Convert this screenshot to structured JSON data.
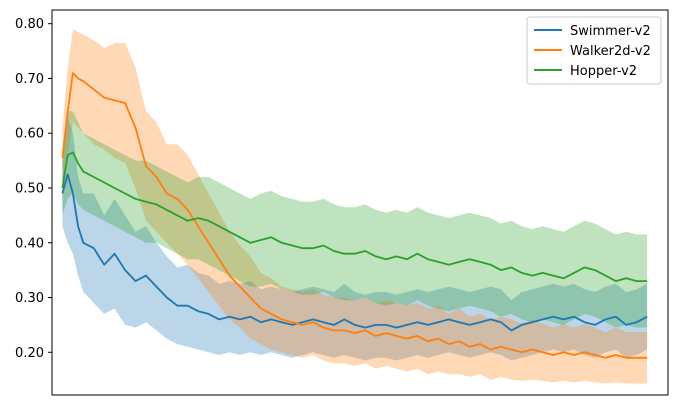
{
  "chart_data": {
    "type": "line",
    "title": "",
    "xlabel": "",
    "ylabel": "",
    "x_ticks_visible": false,
    "ylim": [
      0.122,
      0.825
    ],
    "xlim": [
      -10,
      580
    ],
    "yticks": [
      0.2,
      0.3,
      0.4,
      0.5,
      0.6,
      0.7,
      0.8
    ],
    "ytick_labels": [
      "0.20",
      "0.30",
      "0.40",
      "0.50",
      "0.60",
      "0.70",
      "0.80"
    ],
    "grid": false,
    "legend_position": "top-right",
    "x": [
      0,
      5,
      10,
      15,
      20,
      30,
      40,
      50,
      60,
      70,
      80,
      90,
      100,
      110,
      120,
      130,
      140,
      150,
      160,
      170,
      180,
      190,
      200,
      210,
      220,
      230,
      240,
      250,
      260,
      270,
      280,
      290,
      300,
      310,
      320,
      330,
      340,
      350,
      360,
      370,
      380,
      390,
      400,
      410,
      420,
      430,
      440,
      450,
      460,
      470,
      480,
      490,
      500,
      510,
      520,
      530,
      540,
      550,
      560
    ],
    "series": [
      {
        "name": "Swimmer-v2",
        "color": "#1f77b4",
        "values": [
          0.49,
          0.525,
          0.49,
          0.43,
          0.4,
          0.39,
          0.36,
          0.38,
          0.35,
          0.33,
          0.34,
          0.32,
          0.3,
          0.285,
          0.285,
          0.275,
          0.27,
          0.26,
          0.265,
          0.26,
          0.265,
          0.255,
          0.26,
          0.255,
          0.25,
          0.255,
          0.26,
          0.255,
          0.25,
          0.26,
          0.25,
          0.245,
          0.25,
          0.25,
          0.245,
          0.25,
          0.255,
          0.25,
          0.255,
          0.26,
          0.255,
          0.25,
          0.255,
          0.26,
          0.255,
          0.24,
          0.25,
          0.255,
          0.26,
          0.265,
          0.26,
          0.265,
          0.255,
          0.25,
          0.26,
          0.265,
          0.25,
          0.255,
          0.265
        ],
        "lower": [
          0.43,
          0.4,
          0.38,
          0.34,
          0.31,
          0.29,
          0.27,
          0.28,
          0.25,
          0.245,
          0.255,
          0.24,
          0.225,
          0.215,
          0.21,
          0.205,
          0.2,
          0.195,
          0.2,
          0.195,
          0.2,
          0.195,
          0.2,
          0.195,
          0.19,
          0.195,
          0.2,
          0.195,
          0.19,
          0.195,
          0.19,
          0.185,
          0.19,
          0.19,
          0.185,
          0.19,
          0.195,
          0.19,
          0.195,
          0.2,
          0.195,
          0.19,
          0.195,
          0.2,
          0.195,
          0.185,
          0.19,
          0.195,
          0.2,
          0.205,
          0.2,
          0.205,
          0.195,
          0.19,
          0.2,
          0.205,
          0.19,
          0.195,
          0.205
        ],
        "upper": [
          0.55,
          0.63,
          0.6,
          0.52,
          0.49,
          0.49,
          0.45,
          0.48,
          0.45,
          0.42,
          0.43,
          0.4,
          0.375,
          0.355,
          0.36,
          0.345,
          0.34,
          0.325,
          0.33,
          0.325,
          0.33,
          0.315,
          0.32,
          0.315,
          0.31,
          0.315,
          0.32,
          0.315,
          0.31,
          0.325,
          0.31,
          0.305,
          0.31,
          0.31,
          0.305,
          0.31,
          0.315,
          0.31,
          0.315,
          0.32,
          0.315,
          0.31,
          0.315,
          0.32,
          0.315,
          0.295,
          0.31,
          0.315,
          0.32,
          0.325,
          0.32,
          0.325,
          0.315,
          0.31,
          0.32,
          0.325,
          0.31,
          0.315,
          0.325
        ]
      },
      {
        "name": "Walker2d-v2",
        "color": "#ff7f0e",
        "values": [
          0.555,
          0.64,
          0.71,
          0.7,
          0.695,
          0.68,
          0.665,
          0.66,
          0.655,
          0.61,
          0.54,
          0.52,
          0.49,
          0.48,
          0.46,
          0.43,
          0.4,
          0.37,
          0.34,
          0.32,
          0.3,
          0.28,
          0.27,
          0.26,
          0.255,
          0.25,
          0.255,
          0.245,
          0.24,
          0.24,
          0.235,
          0.24,
          0.23,
          0.235,
          0.23,
          0.225,
          0.23,
          0.22,
          0.225,
          0.215,
          0.22,
          0.21,
          0.215,
          0.205,
          0.21,
          0.205,
          0.2,
          0.205,
          0.2,
          0.195,
          0.2,
          0.195,
          0.2,
          0.195,
          0.19,
          0.195,
          0.19,
          0.19,
          0.19
        ],
        "lower": [
          0.5,
          0.56,
          0.62,
          0.61,
          0.6,
          0.58,
          0.57,
          0.555,
          0.545,
          0.5,
          0.44,
          0.42,
          0.4,
          0.38,
          0.36,
          0.335,
          0.31,
          0.285,
          0.26,
          0.245,
          0.225,
          0.215,
          0.205,
          0.2,
          0.195,
          0.19,
          0.195,
          0.185,
          0.18,
          0.18,
          0.175,
          0.18,
          0.17,
          0.175,
          0.17,
          0.165,
          0.17,
          0.16,
          0.165,
          0.16,
          0.16,
          0.155,
          0.16,
          0.15,
          0.155,
          0.15,
          0.148,
          0.15,
          0.148,
          0.145,
          0.148,
          0.145,
          0.148,
          0.145,
          0.143,
          0.145,
          0.143,
          0.143,
          0.143
        ],
        "upper": [
          0.61,
          0.72,
          0.79,
          0.785,
          0.78,
          0.77,
          0.755,
          0.765,
          0.765,
          0.72,
          0.64,
          0.62,
          0.58,
          0.58,
          0.56,
          0.525,
          0.49,
          0.455,
          0.42,
          0.395,
          0.375,
          0.345,
          0.335,
          0.32,
          0.315,
          0.31,
          0.315,
          0.305,
          0.3,
          0.3,
          0.295,
          0.3,
          0.29,
          0.295,
          0.29,
          0.285,
          0.29,
          0.28,
          0.285,
          0.27,
          0.28,
          0.265,
          0.27,
          0.26,
          0.265,
          0.26,
          0.252,
          0.26,
          0.252,
          0.245,
          0.252,
          0.245,
          0.252,
          0.245,
          0.237,
          0.245,
          0.237,
          0.237,
          0.237
        ]
      },
      {
        "name": "Hopper-v2",
        "color": "#2ca02c",
        "values": [
          0.5,
          0.56,
          0.565,
          0.545,
          0.53,
          0.52,
          0.51,
          0.5,
          0.49,
          0.48,
          0.475,
          0.47,
          0.46,
          0.45,
          0.44,
          0.445,
          0.44,
          0.43,
          0.42,
          0.41,
          0.4,
          0.405,
          0.41,
          0.4,
          0.395,
          0.39,
          0.39,
          0.395,
          0.385,
          0.38,
          0.38,
          0.385,
          0.375,
          0.37,
          0.375,
          0.37,
          0.38,
          0.37,
          0.365,
          0.36,
          0.365,
          0.37,
          0.365,
          0.36,
          0.35,
          0.355,
          0.345,
          0.34,
          0.345,
          0.34,
          0.335,
          0.345,
          0.355,
          0.35,
          0.34,
          0.33,
          0.335,
          0.33,
          0.33
        ],
        "lower": [
          0.45,
          0.48,
          0.49,
          0.47,
          0.46,
          0.45,
          0.44,
          0.43,
          0.42,
          0.41,
          0.4,
          0.4,
          0.39,
          0.38,
          0.37,
          0.37,
          0.36,
          0.35,
          0.34,
          0.33,
          0.32,
          0.32,
          0.325,
          0.315,
          0.31,
          0.305,
          0.305,
          0.31,
          0.3,
          0.295,
          0.295,
          0.3,
          0.29,
          0.285,
          0.29,
          0.285,
          0.295,
          0.285,
          0.28,
          0.275,
          0.28,
          0.285,
          0.28,
          0.275,
          0.265,
          0.27,
          0.26,
          0.255,
          0.26,
          0.255,
          0.25,
          0.26,
          0.27,
          0.265,
          0.255,
          0.245,
          0.25,
          0.245,
          0.245
        ],
        "upper": [
          0.55,
          0.64,
          0.64,
          0.62,
          0.6,
          0.59,
          0.58,
          0.57,
          0.56,
          0.55,
          0.55,
          0.54,
          0.53,
          0.52,
          0.51,
          0.52,
          0.52,
          0.51,
          0.5,
          0.49,
          0.48,
          0.49,
          0.495,
          0.485,
          0.48,
          0.475,
          0.475,
          0.48,
          0.47,
          0.465,
          0.465,
          0.47,
          0.46,
          0.455,
          0.46,
          0.455,
          0.465,
          0.455,
          0.45,
          0.445,
          0.45,
          0.455,
          0.45,
          0.445,
          0.435,
          0.44,
          0.43,
          0.425,
          0.43,
          0.425,
          0.42,
          0.43,
          0.44,
          0.435,
          0.425,
          0.415,
          0.42,
          0.415,
          0.415
        ]
      }
    ]
  }
}
